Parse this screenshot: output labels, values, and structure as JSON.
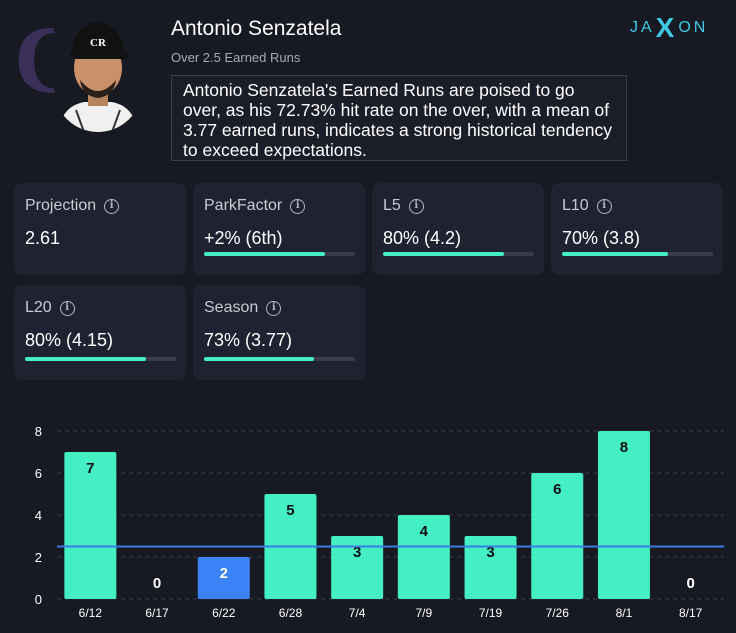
{
  "player": {
    "name": "Antonio Senzatela",
    "market": "Over 2.5 Earned Runs",
    "team_logo_text": "CR",
    "summary": "Antonio Senzatela's Earned Runs are poised to go over, as his 72.73% hit rate on the over, with a mean of 3.77 earned runs, indicates a strong historical tendency to exceed expectations."
  },
  "brand": {
    "left": "JA",
    "x": "X",
    "right": "ON"
  },
  "cards": [
    {
      "title": "Projection",
      "value": "2.61",
      "bar": null
    },
    {
      "title": "ParkFactor",
      "value": "+2% (6th)",
      "bar": 0.8
    },
    {
      "title": "L5",
      "value": "80% (4.2)",
      "bar": 0.8
    },
    {
      "title": "L10",
      "value": "70% (3.8)",
      "bar": 0.7
    },
    {
      "title": "L20",
      "value": "80% (4.15)",
      "bar": 0.8
    },
    {
      "title": "Season",
      "value": "73% (3.77)",
      "bar": 0.73
    }
  ],
  "info_icon_glyph": "i",
  "colors": {
    "over": "#44f0c3",
    "highlight": "#3b82f6",
    "line": "#3b7be0",
    "zero_label": "#ffffff"
  },
  "chart_data": {
    "type": "bar",
    "categories": [
      "6/12",
      "6/17",
      "6/22",
      "6/28",
      "7/4",
      "7/9",
      "7/19",
      "7/26",
      "8/1",
      "8/17"
    ],
    "values": [
      7,
      0,
      2,
      5,
      3,
      4,
      3,
      6,
      8,
      0
    ],
    "highlight_index": 2,
    "threshold": 2.5,
    "yticks": [
      0,
      2,
      4,
      6,
      8
    ],
    "ylim": [
      0,
      8
    ],
    "grid": true
  }
}
